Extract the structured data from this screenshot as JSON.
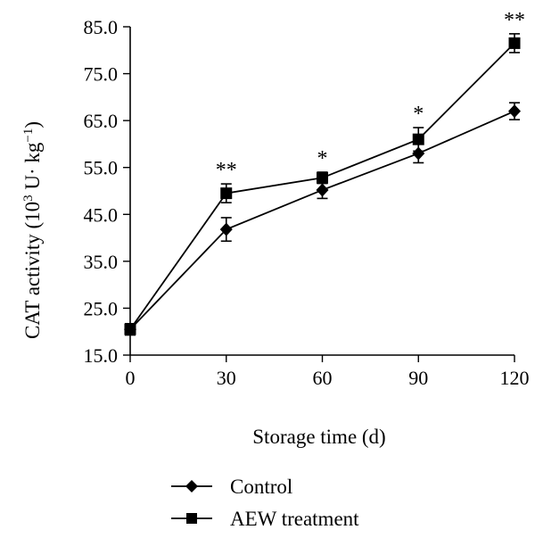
{
  "chart_data": {
    "type": "line",
    "x": [
      0,
      30,
      60,
      90,
      120
    ],
    "xlabel": "Storage time (d)",
    "ylabel": "CAT activity (10³ U· kg⁻¹)",
    "ylabel_parts": {
      "base": "CAT activity (10",
      "exp": "3",
      "mid": " U· kg",
      "exp2": "−1",
      "end": ")"
    },
    "xlim": [
      0,
      120
    ],
    "ylim": [
      15,
      85
    ],
    "xticks": [
      "0",
      "30",
      "60",
      "90",
      "120"
    ],
    "yticks": [
      "15.0",
      "25.0",
      "35.0",
      "45.0",
      "55.0",
      "65.0",
      "75.0",
      "85.0"
    ],
    "series": [
      {
        "name": "Control",
        "marker": "diamond",
        "values": [
          20.5,
          41.8,
          50.2,
          58.0,
          67.0
        ],
        "errors": [
          1.2,
          2.5,
          1.8,
          2.0,
          1.8
        ]
      },
      {
        "name": "AEW treatment",
        "marker": "square",
        "values": [
          20.5,
          49.5,
          52.8,
          61.0,
          81.5
        ],
        "errors": [
          1.2,
          2.0,
          1.2,
          2.5,
          2.0
        ]
      }
    ],
    "significance": [
      {
        "x": 30,
        "label": "**"
      },
      {
        "x": 60,
        "label": "*"
      },
      {
        "x": 90,
        "label": "*"
      },
      {
        "x": 120,
        "label": "**"
      }
    ],
    "legend_position": "bottom-center",
    "grid": false
  }
}
